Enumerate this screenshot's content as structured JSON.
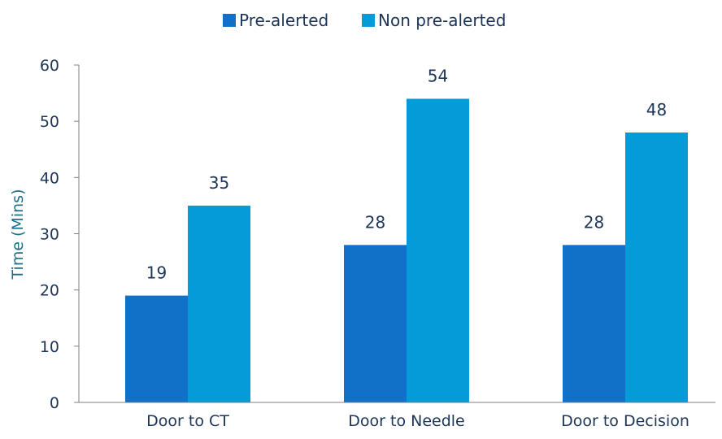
{
  "chart_data": {
    "type": "bar",
    "title": "",
    "xlabel": "",
    "ylabel": "Time (Mins)",
    "ylim": [
      0,
      60
    ],
    "yticks": [
      0,
      10,
      20,
      30,
      40,
      50,
      60
    ],
    "grid": false,
    "legend_position": "top-center",
    "categories": [
      "Door to CT",
      "Door to Needle",
      "Door to Decision"
    ],
    "series": [
      {
        "name": "Pre-alerted",
        "color": "#1170c8",
        "values": [
          19,
          28,
          28
        ]
      },
      {
        "name": "Non pre-alerted",
        "color": "#059ad8",
        "values": [
          35,
          54,
          48
        ]
      }
    ]
  }
}
